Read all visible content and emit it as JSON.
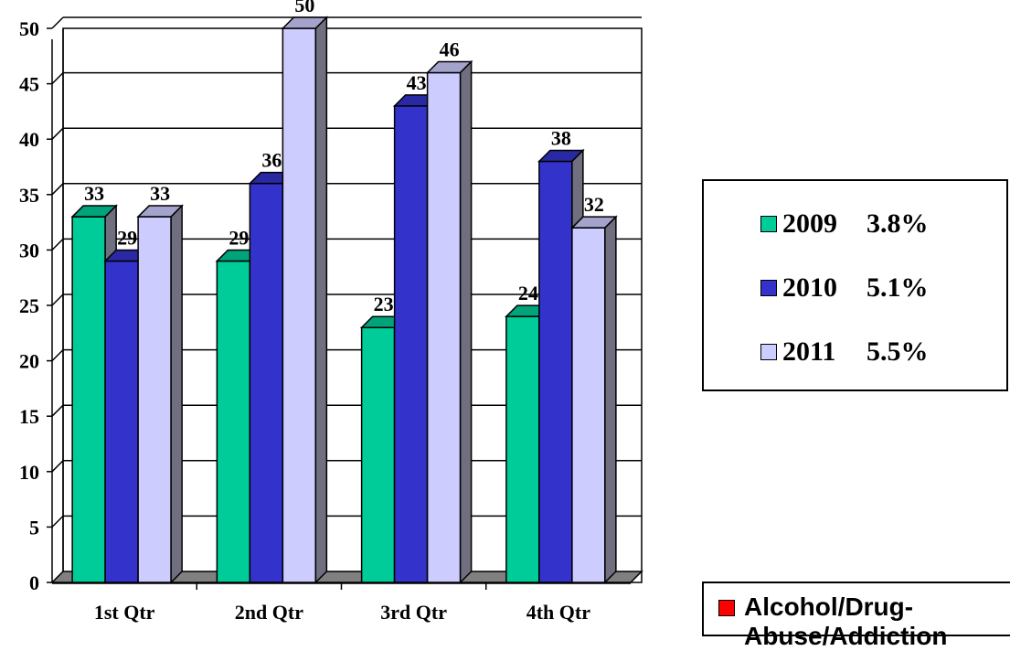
{
  "chart_data": {
    "type": "bar",
    "categories": [
      "1st Qtr",
      "2nd Qtr",
      "3rd Qtr",
      "4th Qtr"
    ],
    "series": [
      {
        "name": "2009",
        "values": [
          33,
          29,
          23,
          24
        ],
        "color": "#00CC99",
        "rate": "3.8%"
      },
      {
        "name": "2010",
        "values": [
          29,
          36,
          43,
          38
        ],
        "color": "#3333CC",
        "rate": "5.1%"
      },
      {
        "name": "2011",
        "values": [
          33,
          50,
          46,
          32
        ],
        "color": "#CCCCFF",
        "rate": "5.5%"
      }
    ],
    "ylim": [
      0,
      50
    ],
    "yticks": [
      0,
      5,
      10,
      15,
      20,
      25,
      30,
      35,
      40,
      45,
      50
    ],
    "grid": true,
    "legend_position": "right",
    "title": "",
    "xlabel": "",
    "ylabel": ""
  },
  "secondary_legend": {
    "label": "Alcohol/Drug-Abuse/Addiction",
    "label_line1": "Alcohol/Drug-",
    "label_line2": "Abuse/Addiction",
    "color": "#FF0000"
  }
}
